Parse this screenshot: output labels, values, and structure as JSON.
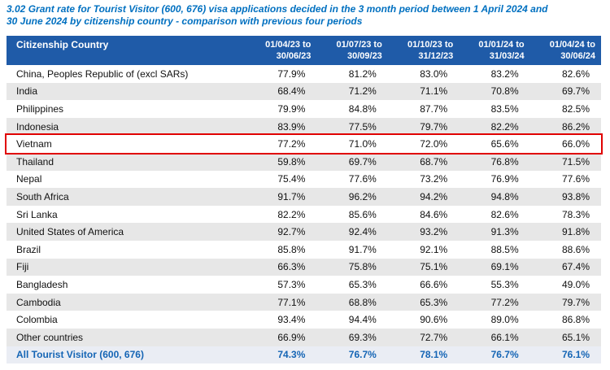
{
  "title": {
    "line1": "3.02 Grant rate for Tourist Visitor (600, 676) visa applications decided in the 3 month period between 1 April 2024 and",
    "line2": "30 June 2024 by citizenship country - comparison with previous four periods"
  },
  "table": {
    "country_header": "Citizenship Country",
    "periods": [
      {
        "line1": "01/04/23 to",
        "line2": "30/06/23"
      },
      {
        "line1": "01/07/23 to",
        "line2": "30/09/23"
      },
      {
        "line1": "01/10/23 to",
        "line2": "31/12/23"
      },
      {
        "line1": "01/01/24 to",
        "line2": "31/03/24"
      },
      {
        "line1": "01/04/24 to",
        "line2": "30/06/24"
      }
    ],
    "rows": [
      {
        "country": "China, Peoples Republic of (excl SARs)",
        "values": [
          "77.9%",
          "81.2%",
          "83.0%",
          "83.2%",
          "82.6%"
        ]
      },
      {
        "country": "India",
        "values": [
          "68.4%",
          "71.2%",
          "71.1%",
          "70.8%",
          "69.7%"
        ]
      },
      {
        "country": "Philippines",
        "values": [
          "79.9%",
          "84.8%",
          "87.7%",
          "83.5%",
          "82.5%"
        ]
      },
      {
        "country": "Indonesia",
        "values": [
          "83.9%",
          "77.5%",
          "79.7%",
          "82.2%",
          "86.2%"
        ]
      },
      {
        "country": "Vietnam",
        "values": [
          "77.2%",
          "71.0%",
          "72.0%",
          "65.6%",
          "66.0%"
        ],
        "highlight": true
      },
      {
        "country": "Thailand",
        "values": [
          "59.8%",
          "69.7%",
          "68.7%",
          "76.8%",
          "71.5%"
        ]
      },
      {
        "country": "Nepal",
        "values": [
          "75.4%",
          "77.6%",
          "73.2%",
          "76.9%",
          "77.6%"
        ]
      },
      {
        "country": "South Africa",
        "values": [
          "91.7%",
          "96.2%",
          "94.2%",
          "94.8%",
          "93.8%"
        ]
      },
      {
        "country": "Sri Lanka",
        "values": [
          "82.2%",
          "85.6%",
          "84.6%",
          "82.6%",
          "78.3%"
        ]
      },
      {
        "country": "United States of America",
        "values": [
          "92.7%",
          "92.4%",
          "93.2%",
          "91.3%",
          "91.8%"
        ]
      },
      {
        "country": "Brazil",
        "values": [
          "85.8%",
          "91.7%",
          "92.1%",
          "88.5%",
          "88.6%"
        ]
      },
      {
        "country": "Fiji",
        "values": [
          "66.3%",
          "75.8%",
          "75.1%",
          "69.1%",
          "67.4%"
        ]
      },
      {
        "country": "Bangladesh",
        "values": [
          "57.3%",
          "65.3%",
          "66.6%",
          "55.3%",
          "49.0%"
        ]
      },
      {
        "country": "Cambodia",
        "values": [
          "77.1%",
          "68.8%",
          "65.3%",
          "77.2%",
          "79.7%"
        ]
      },
      {
        "country": "Colombia",
        "values": [
          "93.4%",
          "94.4%",
          "90.6%",
          "89.0%",
          "86.8%"
        ]
      },
      {
        "country": "Other countries",
        "values": [
          "66.9%",
          "69.3%",
          "72.7%",
          "66.1%",
          "65.1%"
        ]
      },
      {
        "country": "All Tourist Visitor (600, 676)",
        "values": [
          "74.3%",
          "76.7%",
          "78.1%",
          "76.7%",
          "76.1%"
        ],
        "total": true
      }
    ]
  },
  "colors": {
    "title_blue": "#0070C0",
    "header_bg": "#1F5BA8",
    "header_text": "#FFFFFF",
    "row_shade": "#E7E7E7",
    "total_row_bg": "#EAEDF4",
    "total_row_text": "#1565B5",
    "highlight_red": "#E00202"
  }
}
